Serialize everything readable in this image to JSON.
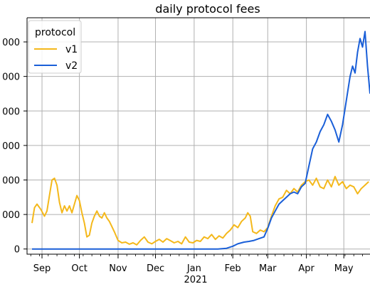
{
  "chart_data": {
    "type": "line",
    "title": "daily protocol fees",
    "xlabel": "",
    "ylabel": "",
    "x_year_label": "2021",
    "x_ticks": [
      {
        "date": "2020-09-01",
        "label": "Sep"
      },
      {
        "date": "2020-10-01",
        "label": "Oct"
      },
      {
        "date": "2020-11-01",
        "label": "Nov"
      },
      {
        "date": "2020-12-01",
        "label": "Dec"
      },
      {
        "date": "2021-01-01",
        "label": "Jan"
      },
      {
        "date": "2021-02-01",
        "label": "Feb"
      },
      {
        "date": "2021-03-01",
        "label": "Mar"
      },
      {
        "date": "2021-04-01",
        "label": "Apr"
      },
      {
        "date": "2021-05-01",
        "label": "May"
      }
    ],
    "y_ticks": [
      {
        "value": 0,
        "label": "0"
      },
      {
        "value": 1,
        "label": "000"
      },
      {
        "value": 2,
        "label": "000"
      },
      {
        "value": 3,
        "label": "000"
      },
      {
        "value": 4,
        "label": "000"
      },
      {
        "value": 5,
        "label": "000"
      },
      {
        "value": 6,
        "label": "000"
      }
    ],
    "xlim": [
      "2020-08-20",
      "2021-05-22"
    ],
    "ylim": [
      -0.15,
      6.7
    ],
    "grid": true,
    "legend": {
      "title": "protocol",
      "placement": "top-left"
    },
    "series": [
      {
        "name": "v1",
        "color": "#f4b81b",
        "points": [
          [
            "2020-08-24",
            0.75
          ],
          [
            "2020-08-26",
            1.2
          ],
          [
            "2020-08-28",
            1.3
          ],
          [
            "2020-08-31",
            1.15
          ],
          [
            "2020-09-03",
            0.95
          ],
          [
            "2020-09-05",
            1.1
          ],
          [
            "2020-09-07",
            1.55
          ],
          [
            "2020-09-09",
            2.0
          ],
          [
            "2020-09-11",
            2.05
          ],
          [
            "2020-09-13",
            1.85
          ],
          [
            "2020-09-15",
            1.35
          ],
          [
            "2020-09-17",
            1.05
          ],
          [
            "2020-09-19",
            1.25
          ],
          [
            "2020-09-21",
            1.1
          ],
          [
            "2020-09-23",
            1.25
          ],
          [
            "2020-09-25",
            1.05
          ],
          [
            "2020-09-27",
            1.3
          ],
          [
            "2020-09-29",
            1.55
          ],
          [
            "2020-10-01",
            1.4
          ],
          [
            "2020-10-03",
            1.05
          ],
          [
            "2020-10-05",
            0.75
          ],
          [
            "2020-10-07",
            0.35
          ],
          [
            "2020-10-09",
            0.4
          ],
          [
            "2020-10-11",
            0.75
          ],
          [
            "2020-10-13",
            0.95
          ],
          [
            "2020-10-15",
            1.1
          ],
          [
            "2020-10-17",
            0.95
          ],
          [
            "2020-10-19",
            0.9
          ],
          [
            "2020-10-21",
            1.05
          ],
          [
            "2020-10-23",
            0.9
          ],
          [
            "2020-10-25",
            0.8
          ],
          [
            "2020-10-27",
            0.65
          ],
          [
            "2020-10-29",
            0.5
          ],
          [
            "2020-11-01",
            0.25
          ],
          [
            "2020-11-04",
            0.18
          ],
          [
            "2020-11-07",
            0.2
          ],
          [
            "2020-11-10",
            0.14
          ],
          [
            "2020-11-13",
            0.18
          ],
          [
            "2020-11-16",
            0.12
          ],
          [
            "2020-11-19",
            0.25
          ],
          [
            "2020-11-22",
            0.35
          ],
          [
            "2020-11-25",
            0.2
          ],
          [
            "2020-11-28",
            0.15
          ],
          [
            "2020-12-01",
            0.22
          ],
          [
            "2020-12-04",
            0.28
          ],
          [
            "2020-12-07",
            0.2
          ],
          [
            "2020-12-10",
            0.3
          ],
          [
            "2020-12-13",
            0.24
          ],
          [
            "2020-12-16",
            0.18
          ],
          [
            "2020-12-19",
            0.22
          ],
          [
            "2020-12-22",
            0.15
          ],
          [
            "2020-12-25",
            0.35
          ],
          [
            "2020-12-28",
            0.2
          ],
          [
            "2020-12-31",
            0.18
          ],
          [
            "2021-01-03",
            0.25
          ],
          [
            "2021-01-06",
            0.22
          ],
          [
            "2021-01-09",
            0.35
          ],
          [
            "2021-01-12",
            0.3
          ],
          [
            "2021-01-15",
            0.42
          ],
          [
            "2021-01-18",
            0.28
          ],
          [
            "2021-01-21",
            0.38
          ],
          [
            "2021-01-24",
            0.32
          ],
          [
            "2021-01-27",
            0.45
          ],
          [
            "2021-01-30",
            0.55
          ],
          [
            "2021-02-02",
            0.7
          ],
          [
            "2021-02-05",
            0.62
          ],
          [
            "2021-02-08",
            0.8
          ],
          [
            "2021-02-11",
            0.9
          ],
          [
            "2021-02-13",
            1.05
          ],
          [
            "2021-02-15",
            0.95
          ],
          [
            "2021-02-17",
            0.5
          ],
          [
            "2021-02-20",
            0.45
          ],
          [
            "2021-02-23",
            0.55
          ],
          [
            "2021-02-26",
            0.5
          ],
          [
            "2021-03-01",
            0.62
          ],
          [
            "2021-03-04",
            0.95
          ],
          [
            "2021-03-07",
            1.25
          ],
          [
            "2021-03-10",
            1.45
          ],
          [
            "2021-03-13",
            1.5
          ],
          [
            "2021-03-16",
            1.7
          ],
          [
            "2021-03-19",
            1.6
          ],
          [
            "2021-03-22",
            1.75
          ],
          [
            "2021-03-25",
            1.65
          ],
          [
            "2021-03-28",
            1.85
          ],
          [
            "2021-03-31",
            1.95
          ],
          [
            "2021-04-03",
            2.0
          ],
          [
            "2021-04-06",
            1.85
          ],
          [
            "2021-04-09",
            2.05
          ],
          [
            "2021-04-12",
            1.8
          ],
          [
            "2021-04-15",
            1.75
          ],
          [
            "2021-04-18",
            2.0
          ],
          [
            "2021-04-21",
            1.8
          ],
          [
            "2021-04-24",
            2.1
          ],
          [
            "2021-04-27",
            1.85
          ],
          [
            "2021-04-30",
            1.95
          ],
          [
            "2021-05-03",
            1.75
          ],
          [
            "2021-05-06",
            1.85
          ],
          [
            "2021-05-09",
            1.8
          ],
          [
            "2021-05-12",
            1.6
          ],
          [
            "2021-05-15",
            1.75
          ],
          [
            "2021-05-18",
            1.85
          ],
          [
            "2021-05-21",
            1.95
          ]
        ]
      },
      {
        "name": "v2",
        "color": "#1a5fd8",
        "points": [
          [
            "2020-08-24",
            0.0
          ],
          [
            "2021-01-20",
            0.0
          ],
          [
            "2021-01-27",
            0.02
          ],
          [
            "2021-02-01",
            0.08
          ],
          [
            "2021-02-05",
            0.15
          ],
          [
            "2021-02-10",
            0.2
          ],
          [
            "2021-02-14",
            0.22
          ],
          [
            "2021-02-18",
            0.25
          ],
          [
            "2021-02-22",
            0.3
          ],
          [
            "2021-02-26",
            0.35
          ],
          [
            "2021-03-01",
            0.6
          ],
          [
            "2021-03-04",
            0.9
          ],
          [
            "2021-03-07",
            1.1
          ],
          [
            "2021-03-10",
            1.3
          ],
          [
            "2021-03-13",
            1.4
          ],
          [
            "2021-03-16",
            1.5
          ],
          [
            "2021-03-19",
            1.6
          ],
          [
            "2021-03-22",
            1.65
          ],
          [
            "2021-03-25",
            1.6
          ],
          [
            "2021-03-28",
            1.8
          ],
          [
            "2021-03-31",
            1.9
          ],
          [
            "2021-04-03",
            2.4
          ],
          [
            "2021-04-06",
            2.9
          ],
          [
            "2021-04-09",
            3.1
          ],
          [
            "2021-04-12",
            3.4
          ],
          [
            "2021-04-15",
            3.6
          ],
          [
            "2021-04-18",
            3.9
          ],
          [
            "2021-04-21",
            3.7
          ],
          [
            "2021-04-24",
            3.45
          ],
          [
            "2021-04-27",
            3.1
          ],
          [
            "2021-04-30",
            3.6
          ],
          [
            "2021-05-03",
            4.3
          ],
          [
            "2021-05-06",
            5.0
          ],
          [
            "2021-05-08",
            5.3
          ],
          [
            "2021-05-10",
            5.1
          ],
          [
            "2021-05-12",
            5.7
          ],
          [
            "2021-05-14",
            6.1
          ],
          [
            "2021-05-16",
            5.85
          ],
          [
            "2021-05-18",
            6.3
          ],
          [
            "2021-05-20",
            5.3
          ],
          [
            "2021-05-22",
            4.5
          ]
        ]
      }
    ]
  }
}
